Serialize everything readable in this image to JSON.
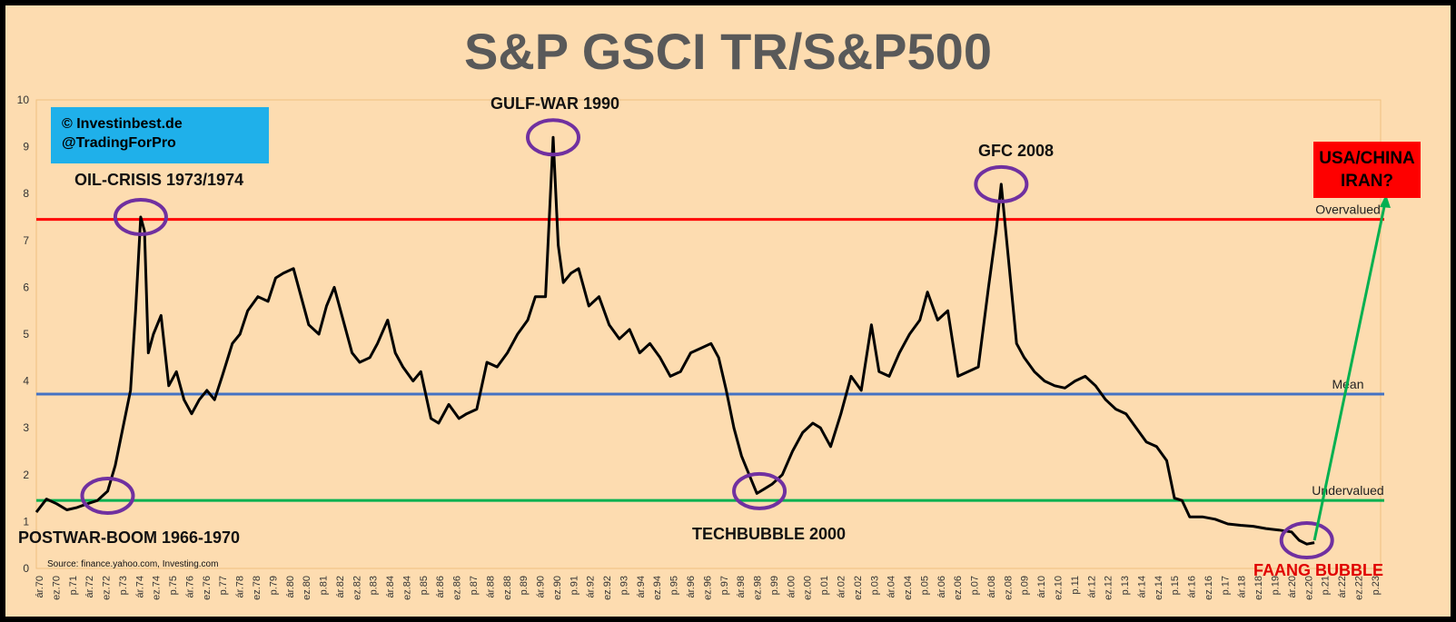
{
  "chart_data": {
    "type": "line",
    "title": "S&P GSCI TR/S&P500",
    "ylim": [
      0,
      10
    ],
    "yticks": [
      "0",
      "1",
      "2",
      "3",
      "4",
      "5",
      "6",
      "7",
      "8",
      "9",
      "10"
    ],
    "x_tick_labels": [
      "ár.70",
      "ez.70",
      "p.71",
      "ár.72",
      "ez.72",
      "p.73",
      "ár.74",
      "ez.74",
      "p.75",
      "ár.76",
      "ez.76",
      "p.77",
      "ár.78",
      "ez.78",
      "p.79",
      "ár.80",
      "ez.80",
      "p.81",
      "ár.82",
      "ez.82",
      "p.83",
      "ár.84",
      "ez.84",
      "p.85",
      "ár.86",
      "ez.86",
      "p.87",
      "ár.88",
      "ez.88",
      "p.89",
      "ár.90",
      "ez.90",
      "p.91",
      "ár.92",
      "ez.92",
      "p.93",
      "ár.94",
      "ez.94",
      "p.95",
      "ár.96",
      "ez.96",
      "p.97",
      "ár.98",
      "ez.98",
      "p.99",
      "ár.00",
      "ez.00",
      "p.01",
      "ár.02",
      "ez.02",
      "p.03",
      "ár.04",
      "ez.04",
      "p.05",
      "ár.06",
      "ez.06",
      "p.07",
      "ár.08",
      "ez.08",
      "p.09",
      "ár.10",
      "ez.10",
      "p.11",
      "ár.12",
      "ez.12",
      "p.13",
      "ár.14",
      "ez.14",
      "p.15",
      "ár.16",
      "ez.16",
      "p.17",
      "ár.18",
      "ez.18",
      "p.19",
      "ár.20",
      "ez.20",
      "p.21",
      "ár.22",
      "ez.22",
      "p.23"
    ],
    "series": [
      {
        "values": [
          [
            1970.2,
            1.2
          ],
          [
            1970.6,
            1.48
          ],
          [
            1971.0,
            1.38
          ],
          [
            1971.4,
            1.25
          ],
          [
            1971.8,
            1.3
          ],
          [
            1972.2,
            1.38
          ],
          [
            1972.6,
            1.45
          ],
          [
            1973.0,
            1.65
          ],
          [
            1973.3,
            2.2
          ],
          [
            1973.6,
            3.0
          ],
          [
            1973.9,
            3.8
          ],
          [
            1974.1,
            5.5
          ],
          [
            1974.3,
            7.5
          ],
          [
            1974.45,
            7.2
          ],
          [
            1974.6,
            4.6
          ],
          [
            1974.8,
            5.0
          ],
          [
            1975.1,
            5.4
          ],
          [
            1975.4,
            3.9
          ],
          [
            1975.7,
            4.2
          ],
          [
            1976.0,
            3.6
          ],
          [
            1976.3,
            3.3
          ],
          [
            1976.6,
            3.6
          ],
          [
            1976.9,
            3.8
          ],
          [
            1977.2,
            3.6
          ],
          [
            1977.5,
            4.1
          ],
          [
            1977.9,
            4.8
          ],
          [
            1978.2,
            5.0
          ],
          [
            1978.5,
            5.5
          ],
          [
            1978.9,
            5.8
          ],
          [
            1979.3,
            5.7
          ],
          [
            1979.6,
            6.2
          ],
          [
            1979.9,
            6.3
          ],
          [
            1980.3,
            6.4
          ],
          [
            1980.6,
            5.8
          ],
          [
            1980.9,
            5.2
          ],
          [
            1981.3,
            5.0
          ],
          [
            1981.6,
            5.6
          ],
          [
            1981.9,
            6.0
          ],
          [
            1982.2,
            5.4
          ],
          [
            1982.6,
            4.6
          ],
          [
            1982.9,
            4.4
          ],
          [
            1983.3,
            4.5
          ],
          [
            1983.6,
            4.8
          ],
          [
            1984.0,
            5.3
          ],
          [
            1984.3,
            4.6
          ],
          [
            1984.6,
            4.3
          ],
          [
            1985.0,
            4.0
          ],
          [
            1985.3,
            4.2
          ],
          [
            1985.7,
            3.2
          ],
          [
            1986.0,
            3.1
          ],
          [
            1986.4,
            3.5
          ],
          [
            1986.8,
            3.2
          ],
          [
            1987.1,
            3.3
          ],
          [
            1987.5,
            3.4
          ],
          [
            1987.9,
            4.4
          ],
          [
            1988.3,
            4.3
          ],
          [
            1988.7,
            4.6
          ],
          [
            1989.1,
            5.0
          ],
          [
            1989.5,
            5.3
          ],
          [
            1989.8,
            5.8
          ],
          [
            1990.2,
            5.8
          ],
          [
            1990.5,
            9.2
          ],
          [
            1990.7,
            6.9
          ],
          [
            1990.9,
            6.1
          ],
          [
            1991.2,
            6.3
          ],
          [
            1991.5,
            6.4
          ],
          [
            1991.9,
            5.6
          ],
          [
            1992.3,
            5.8
          ],
          [
            1992.7,
            5.2
          ],
          [
            1993.1,
            4.9
          ],
          [
            1993.5,
            5.1
          ],
          [
            1993.9,
            4.6
          ],
          [
            1994.3,
            4.8
          ],
          [
            1994.7,
            4.5
          ],
          [
            1995.1,
            4.1
          ],
          [
            1995.5,
            4.2
          ],
          [
            1995.9,
            4.6
          ],
          [
            1996.3,
            4.7
          ],
          [
            1996.7,
            4.8
          ],
          [
            1997.0,
            4.5
          ],
          [
            1997.3,
            3.8
          ],
          [
            1997.6,
            3.0
          ],
          [
            1997.9,
            2.4
          ],
          [
            1998.2,
            2.0
          ],
          [
            1998.5,
            1.6
          ],
          [
            1998.8,
            1.7
          ],
          [
            1999.1,
            1.8
          ],
          [
            1999.5,
            2.0
          ],
          [
            1999.9,
            2.5
          ],
          [
            2000.3,
            2.9
          ],
          [
            2000.7,
            3.1
          ],
          [
            2001.0,
            3.0
          ],
          [
            2001.4,
            2.6
          ],
          [
            2001.8,
            3.3
          ],
          [
            2002.2,
            4.1
          ],
          [
            2002.6,
            3.8
          ],
          [
            2003.0,
            5.2
          ],
          [
            2003.3,
            4.2
          ],
          [
            2003.7,
            4.1
          ],
          [
            2004.1,
            4.6
          ],
          [
            2004.5,
            5.0
          ],
          [
            2004.9,
            5.3
          ],
          [
            2005.2,
            5.9
          ],
          [
            2005.6,
            5.3
          ],
          [
            2006.0,
            5.5
          ],
          [
            2006.4,
            4.1
          ],
          [
            2006.8,
            4.2
          ],
          [
            2007.2,
            4.3
          ],
          [
            2007.6,
            6.0
          ],
          [
            2007.9,
            7.2
          ],
          [
            2008.1,
            8.2
          ],
          [
            2008.4,
            6.5
          ],
          [
            2008.7,
            4.8
          ],
          [
            2009.0,
            4.5
          ],
          [
            2009.4,
            4.2
          ],
          [
            2009.8,
            4.0
          ],
          [
            2010.2,
            3.9
          ],
          [
            2010.6,
            3.85
          ],
          [
            2011.0,
            4.0
          ],
          [
            2011.4,
            4.1
          ],
          [
            2011.8,
            3.9
          ],
          [
            2012.2,
            3.6
          ],
          [
            2012.6,
            3.4
          ],
          [
            2013.0,
            3.3
          ],
          [
            2013.4,
            3.0
          ],
          [
            2013.8,
            2.7
          ],
          [
            2014.2,
            2.6
          ],
          [
            2014.6,
            2.3
          ],
          [
            2014.9,
            1.5
          ],
          [
            2015.2,
            1.45
          ],
          [
            2015.5,
            1.1
          ],
          [
            2016.0,
            1.1
          ],
          [
            2016.5,
            1.05
          ],
          [
            2017.0,
            0.95
          ],
          [
            2017.5,
            0.92
          ],
          [
            2018.0,
            0.9
          ],
          [
            2018.5,
            0.85
          ],
          [
            2019.0,
            0.82
          ],
          [
            2019.5,
            0.78
          ],
          [
            2019.8,
            0.6
          ],
          [
            2020.1,
            0.52
          ],
          [
            2020.4,
            0.55
          ]
        ]
      }
    ],
    "reference_lines": [
      {
        "label": "Overvalued",
        "y": 7.45,
        "color": "#ff0000"
      },
      {
        "label": "Mean",
        "y": 3.72,
        "color": "#4472c4"
      },
      {
        "label": "Undervalued",
        "y": 1.45,
        "color": "#00b050"
      }
    ],
    "annotations": [
      {
        "id": "oil",
        "text": "OIL-CRISIS 1973/1974"
      },
      {
        "id": "gulf",
        "text": "GULF-WAR 1990"
      },
      {
        "id": "gfc",
        "text": "GFC 2008"
      },
      {
        "id": "postwar",
        "text": "POSTWAR-BOOM 1966-1970"
      },
      {
        "id": "tech",
        "text": "TECHBUBBLE 2000"
      },
      {
        "id": "faang",
        "text": "FAANG BUBBLE"
      }
    ],
    "source": "Source: finance.yahoo.com, Investing.com",
    "badge": {
      "line1": "© Investinbest.de",
      "line2": "@TradingForPro"
    },
    "callout": {
      "line1": "USA/CHINA",
      "line2": "IRAN?"
    },
    "colors": {
      "line": "#000000",
      "circle": "#7030a0",
      "arrow": "#00b050",
      "background": "#fddcb0"
    }
  }
}
